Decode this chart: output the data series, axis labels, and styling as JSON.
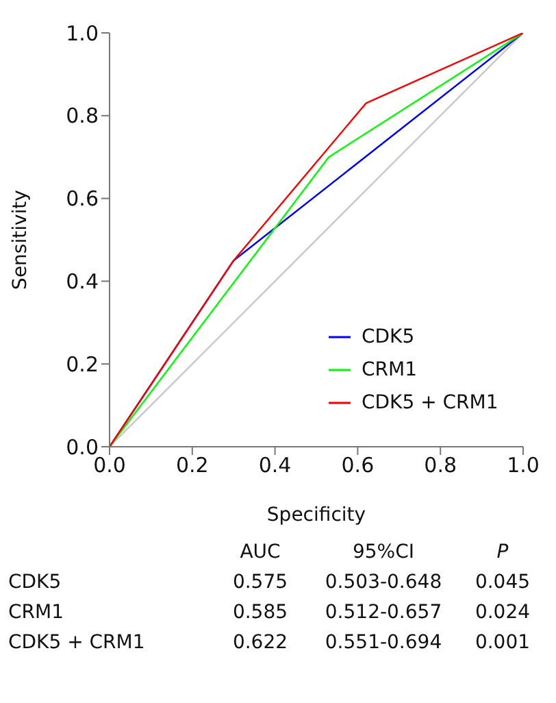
{
  "chart_data": {
    "type": "line",
    "xlabel": "Specificity",
    "ylabel": "Sensitivity",
    "xlim": [
      0,
      1
    ],
    "ylim": [
      0,
      1
    ],
    "xticks": [
      {
        "value": 0,
        "label": "0.0"
      },
      {
        "value": 0.2,
        "label": "0.2"
      },
      {
        "value": 0.4,
        "label": "0.4"
      },
      {
        "value": 0.6,
        "label": "0.6"
      },
      {
        "value": 0.8,
        "label": "0.8"
      },
      {
        "value": 1,
        "label": "1.0"
      }
    ],
    "yticks": [
      {
        "value": 0,
        "label": "0.0"
      },
      {
        "value": 0.2,
        "label": "0.2"
      },
      {
        "value": 0.4,
        "label": "0.4"
      },
      {
        "value": 0.6,
        "label": "0.6"
      },
      {
        "value": 0.8,
        "label": "0.8"
      },
      {
        "value": 1,
        "label": "1.0"
      }
    ],
    "grid": false,
    "legend": "bottom right",
    "marker": "none",
    "line_style": "solid",
    "series": [
      {
        "color": "#c8c8c8",
        "x": [
          0,
          1
        ],
        "values": [
          0,
          1
        ]
      },
      {
        "name": "CDK5",
        "color": "#0000ff",
        "x": [
          0,
          0.3,
          1
        ],
        "values": [
          0,
          0.45,
          1
        ]
      },
      {
        "name": "CRM1",
        "color": "#00ff00",
        "x": [
          0,
          0.53,
          1
        ],
        "values": [
          0,
          0.7,
          1
        ]
      },
      {
        "name": "CDK5 + CRM1",
        "color": "#ff0000",
        "x": [
          0,
          0.3,
          0.62,
          1
        ],
        "values": [
          0,
          0.45,
          0.83,
          1
        ]
      }
    ],
    "annotations": [
      "AUC",
      "95%CI",
      "P",
      "CDK5",
      "0.575",
      "0.503-0.648",
      "0.045",
      "CRM1",
      "0.585",
      "0.512-0.657",
      "0.024",
      "CDK5 + CRM1",
      "0.622",
      "0.551-0.694",
      "0.001"
    ]
  }
}
